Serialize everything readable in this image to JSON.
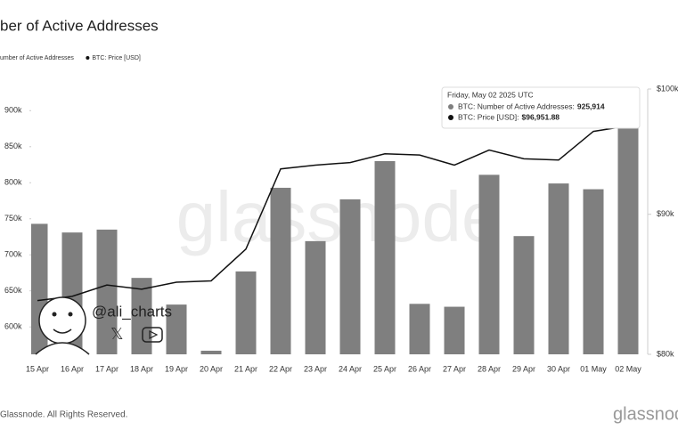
{
  "chart_data": {
    "type": "bar_line",
    "title": "ber of Active Addresses",
    "categories": [
      "15 Apr",
      "16 Apr",
      "17 Apr",
      "18 Apr",
      "19 Apr",
      "20 Apr",
      "21 Apr",
      "22 Apr",
      "23 Apr",
      "24 Apr",
      "25 Apr",
      "26 Apr",
      "27 Apr",
      "28 Apr",
      "29 Apr",
      "30 Apr",
      "01 May",
      "02 May"
    ],
    "series": [
      {
        "name": "umber of Active Addresses",
        "type": "bar",
        "color": "#7f7f7f",
        "values": [
          743000,
          731000,
          735000,
          668000,
          631000,
          567000,
          677000,
          793000,
          719000,
          777000,
          830000,
          632000,
          628000,
          811000,
          726000,
          799000,
          791000,
          925914
        ]
      },
      {
        "name": "BTC: Price [USD]",
        "type": "line",
        "color": "#111111",
        "axis": "y2",
        "values": [
          83700,
          84000,
          84800,
          84500,
          85000,
          85100,
          87400,
          93500,
          93800,
          94000,
          94700,
          94600,
          93800,
          95000,
          94300,
          94200,
          96500,
          96951.88
        ]
      }
    ],
    "ylim": [
      562000,
      930000
    ],
    "yticks": [
      {
        "value": 600000,
        "label": "600k"
      },
      {
        "value": 650000,
        "label": "650k"
      },
      {
        "value": 700000,
        "label": "700k"
      },
      {
        "value": 750000,
        "label": "750k"
      },
      {
        "value": 800000,
        "label": "800k"
      },
      {
        "value": 850000,
        "label": "850k"
      },
      {
        "value": 900000,
        "label": "900k"
      }
    ],
    "y2lim": [
      80000,
      100000
    ],
    "y2ticks": [
      {
        "value": 80000,
        "label": "$80k"
      },
      {
        "value": 90000,
        "label": "$90k"
      },
      {
        "value": 100000,
        "label": "$100k"
      }
    ],
    "y2_log": true,
    "grid": false,
    "tooltip": {
      "date": "Friday, May 02 2025 UTC",
      "lines": [
        {
          "label": "BTC: Number of Active Addresses:",
          "value": "925,914"
        },
        {
          "label": "BTC: Price [USD]:",
          "value": "$96,951.88"
        }
      ]
    },
    "watermark": "glassnode",
    "handle": "@ali_charts",
    "footer": "Glassnode. All Rights Reserved.",
    "logo": "glassnode"
  }
}
